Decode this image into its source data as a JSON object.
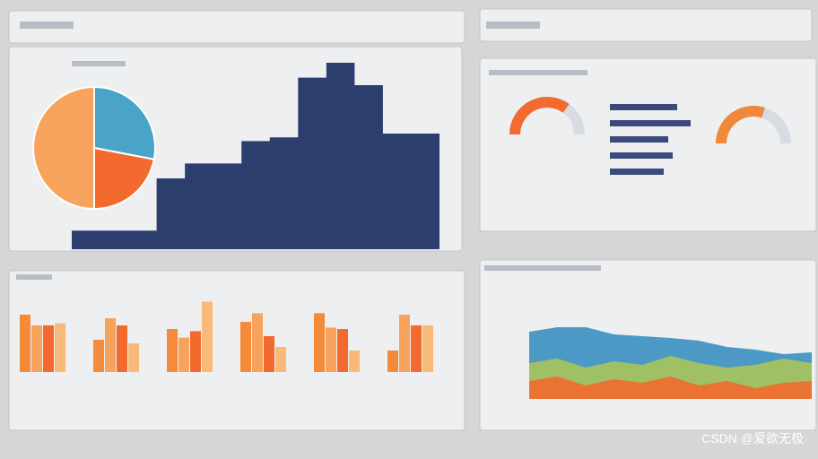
{
  "watermark": "CSDN @爱欲无极",
  "pie": {
    "values": [
      28,
      22,
      50
    ],
    "colors": [
      "#4aa3c8",
      "#f26a2e",
      "#f7a35c"
    ]
  },
  "area": {
    "color": "#2c3e6e",
    "ylim": [
      0,
      100
    ],
    "values": [
      10,
      10,
      10,
      38,
      46,
      46,
      58,
      60,
      92,
      100,
      88,
      62,
      62
    ]
  },
  "hbars": {
    "color": "#3a4a7a",
    "xlim": [
      0,
      100
    ],
    "values": [
      75,
      90,
      65,
      70,
      60
    ]
  },
  "gauges": {
    "values": [
      70,
      60
    ],
    "colors": [
      "#f26a2e",
      "#f0873a"
    ]
  },
  "bars": {
    "ylim": [
      0,
      100
    ],
    "colors": [
      "#f58a3a",
      "#f7a35c",
      "#f26a2e",
      "#f9b978"
    ],
    "groups": [
      [
        80,
        65,
        65,
        68
      ],
      [
        45,
        75,
        65,
        40
      ],
      [
        60,
        48,
        57,
        98
      ],
      [
        70,
        82,
        50,
        35
      ],
      [
        82,
        62,
        60,
        30
      ],
      [
        30,
        80,
        65,
        65
      ]
    ]
  },
  "areas": {
    "ylim": [
      0,
      100
    ],
    "series": [
      {
        "color": "#3a8fc0",
        "values": [
          75,
          80,
          80,
          72,
          70,
          68,
          65,
          58,
          55,
          50,
          52
        ]
      },
      {
        "color": "#a8c45a",
        "values": [
          40,
          45,
          35,
          42,
          38,
          48,
          40,
          35,
          38,
          45,
          40
        ]
      },
      {
        "color": "#f26a2e",
        "values": [
          20,
          25,
          15,
          22,
          18,
          25,
          15,
          20,
          12,
          18,
          20
        ]
      }
    ]
  }
}
